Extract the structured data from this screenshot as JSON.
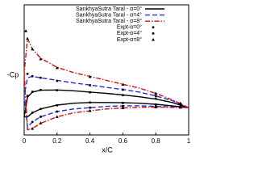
{
  "chart_data": {
    "type": "line",
    "x_label": "x/C",
    "y_label": "-Cp",
    "xlim": [
      0,
      1
    ],
    "ylim": [
      -1.2,
      3.8
    ],
    "xticks": [
      0,
      0.2,
      0.4,
      0.6,
      0.8,
      1
    ],
    "legend": "top-right",
    "series": [
      {
        "name": "SankhyaSutra Taral - α=0°",
        "color": "#000000",
        "style": "solid",
        "x": [
          1,
          0.9,
          0.8,
          0.7,
          0.6,
          0.5,
          0.4,
          0.3,
          0.2,
          0.1,
          0.05,
          0.02,
          0,
          0.02,
          0.05,
          0.1,
          0.2,
          0.3,
          0.4,
          0.5,
          0.6,
          0.7,
          0.8,
          0.9,
          1
        ],
        "values": [
          -0.15,
          0.05,
          0.18,
          0.27,
          0.34,
          0.4,
          0.45,
          0.5,
          0.53,
          0.52,
          0.45,
          0.25,
          -0.5,
          -0.5,
          -0.35,
          -0.2,
          -0.05,
          0.02,
          0.05,
          0.05,
          0.04,
          0.02,
          -0.02,
          -0.08,
          -0.15
        ]
      },
      {
        "name": "SankhyaSutra Taral - α=4°",
        "color": "#1f2fd0",
        "style": "dashed",
        "x": [
          1,
          0.9,
          0.8,
          0.7,
          0.6,
          0.5,
          0.4,
          0.3,
          0.2,
          0.1,
          0.05,
          0.02,
          0,
          0.02,
          0.05,
          0.1,
          0.2,
          0.3,
          0.4,
          0.5,
          0.6,
          0.7,
          0.8,
          0.9,
          1
        ],
        "values": [
          -0.15,
          0.12,
          0.3,
          0.45,
          0.55,
          0.63,
          0.72,
          0.8,
          0.9,
          1.0,
          1.05,
          1.0,
          0.3,
          -0.9,
          -0.7,
          -0.5,
          -0.3,
          -0.2,
          -0.15,
          -0.1,
          -0.08,
          -0.08,
          -0.1,
          -0.12,
          -0.15
        ]
      },
      {
        "name": "SankhyaSutra Taral - α=8°",
        "color": "#d01010",
        "style": "dashdot",
        "x": [
          1,
          0.9,
          0.8,
          0.7,
          0.6,
          0.5,
          0.4,
          0.3,
          0.2,
          0.1,
          0.05,
          0.02,
          0,
          0.02,
          0.05,
          0.1,
          0.2,
          0.3,
          0.4,
          0.5,
          0.6,
          0.7,
          0.8,
          0.9,
          1
        ],
        "values": [
          -0.15,
          0.15,
          0.4,
          0.6,
          0.75,
          0.9,
          1.05,
          1.2,
          1.4,
          1.75,
          2.1,
          2.5,
          1.2,
          -1.0,
          -0.95,
          -0.75,
          -0.5,
          -0.35,
          -0.27,
          -0.2,
          -0.16,
          -0.14,
          -0.13,
          -0.14,
          -0.15
        ]
      },
      {
        "name": "Expt-α=0°",
        "color": "#000000",
        "marker": "square",
        "type": "scatter",
        "x": [
          0.95,
          0.8,
          0.6,
          0.4,
          0.2,
          0.1,
          0.05,
          0.02,
          0.05,
          0.1,
          0.2,
          0.4,
          0.6,
          0.8,
          0.95
        ],
        "values": [
          -0.05,
          0.2,
          0.33,
          0.44,
          0.52,
          0.53,
          0.46,
          0.3,
          -0.34,
          -0.2,
          -0.06,
          0.05,
          0.03,
          -0.03,
          -0.1
        ]
      },
      {
        "name": "Expt-α=4°",
        "color": "#000000",
        "marker": "square",
        "type": "scatter",
        "x": [
          0.95,
          0.8,
          0.6,
          0.4,
          0.2,
          0.1,
          0.05,
          0.02,
          0.05,
          0.1,
          0.2,
          0.4,
          0.6,
          0.8,
          0.95
        ],
        "values": [
          0.0,
          0.3,
          0.54,
          0.71,
          0.88,
          1.0,
          1.06,
          1.15,
          -0.7,
          -0.5,
          -0.3,
          -0.15,
          -0.09,
          -0.11,
          -0.13
        ]
      },
      {
        "name": "Expt-α=8°",
        "color": "#000000",
        "marker": "triangle",
        "type": "scatter",
        "x": [
          0.95,
          0.8,
          0.6,
          0.4,
          0.2,
          0.1,
          0.05,
          0.02,
          0.01,
          0.05,
          0.1,
          0.2,
          0.4,
          0.6,
          0.8,
          0.95
        ],
        "values": [
          0.02,
          0.4,
          0.74,
          1.04,
          1.38,
          1.72,
          2.1,
          2.5,
          2.8,
          -0.95,
          -0.74,
          -0.5,
          -0.27,
          -0.16,
          -0.13,
          -0.14
        ]
      }
    ]
  }
}
